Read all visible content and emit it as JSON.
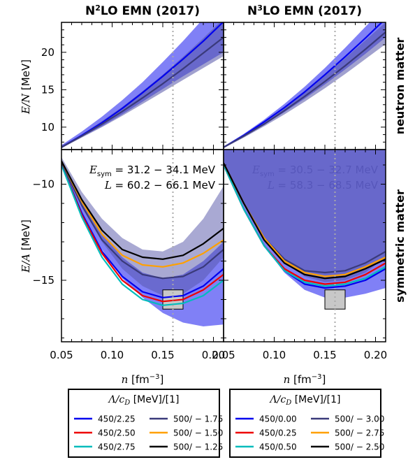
{
  "chart_data": [
    {
      "type": "line",
      "title": "N²LO EMN (2017)",
      "title_main": "N",
      "title_sup": "2",
      "title_rest": "LO EMN (2017)",
      "panel": "neutron matter",
      "xlim": [
        0.05,
        0.21
      ],
      "ylim": [
        7,
        24
      ],
      "ylabel": "E/N [MeV]",
      "yticks": [
        10,
        15,
        20
      ],
      "x": [
        0.05,
        0.07,
        0.09,
        0.11,
        0.13,
        0.15,
        0.17,
        0.19,
        0.21
      ],
      "bands": [
        {
          "name": "Λ=450",
          "color": "#6a6af5",
          "opacity": 0.85,
          "lower": [
            7.2,
            8.7,
            10.1,
            11.7,
            13.4,
            15.1,
            16.8,
            18.4,
            20.0
          ],
          "upper": [
            7.6,
            9.4,
            11.4,
            13.6,
            16.0,
            18.7,
            21.5,
            24.5,
            27.5
          ]
        },
        {
          "name": "Λ=500",
          "color": "#5353a8",
          "opacity": 0.55,
          "lower": [
            7.2,
            8.6,
            10.0,
            11.5,
            13.1,
            14.7,
            16.3,
            17.9,
            19.5
          ],
          "upper": [
            7.5,
            9.0,
            10.8,
            12.7,
            14.8,
            17.0,
            19.4,
            21.9,
            24.5
          ]
        }
      ],
      "lines": [
        {
          "color": "#0000ee",
          "values": [
            7.3,
            8.9,
            10.6,
            12.5,
            14.6,
            16.8,
            19.1,
            21.5,
            24.1
          ]
        },
        {
          "color": "#3a3a7a",
          "values": [
            7.3,
            8.8,
            10.4,
            12.1,
            13.9,
            15.8,
            17.8,
            19.9,
            22.0
          ]
        }
      ]
    },
    {
      "type": "line",
      "title": "N³LO EMN (2017)",
      "title_main": "N",
      "title_sup": "3",
      "title_rest": "LO EMN (2017)",
      "panel": "neutron matter",
      "xlim": [
        0.05,
        0.21
      ],
      "ylim": [
        7,
        24
      ],
      "x": [
        0.05,
        0.07,
        0.09,
        0.11,
        0.13,
        0.15,
        0.17,
        0.19,
        0.21
      ],
      "bands": [
        {
          "name": "Λ=450",
          "color": "#6a6af5",
          "opacity": 0.85,
          "lower": [
            7.2,
            8.7,
            10.3,
            12.0,
            13.8,
            15.7,
            17.7,
            19.8,
            22.0
          ],
          "upper": [
            7.4,
            9.1,
            11.0,
            13.1,
            15.4,
            17.9,
            20.6,
            23.4,
            26.2
          ]
        },
        {
          "name": "Λ=500",
          "color": "#5353a8",
          "opacity": 0.55,
          "lower": [
            7.2,
            8.6,
            10.1,
            11.7,
            13.4,
            15.2,
            17.1,
            19.1,
            21.1
          ],
          "upper": [
            7.4,
            8.9,
            10.7,
            12.6,
            14.7,
            16.9,
            19.2,
            21.6,
            24.0
          ]
        }
      ],
      "lines": [
        {
          "color": "#0000ee",
          "values": [
            7.3,
            8.9,
            10.7,
            12.6,
            14.7,
            17.0,
            19.4,
            21.9,
            24.5
          ]
        },
        {
          "color": "#3a3a7a",
          "values": [
            7.3,
            8.8,
            10.4,
            12.2,
            14.1,
            16.1,
            18.2,
            20.4,
            22.7
          ]
        }
      ]
    },
    {
      "type": "line",
      "panel": "symmetric matter",
      "xlim": [
        0.05,
        0.21
      ],
      "ylim": [
        -18.2,
        -8.2
      ],
      "ylabel": "E/A [MeV]",
      "yticks": [
        -10,
        -15
      ],
      "xlabel": "n [fm⁻³]",
      "xticks": [
        "0.05",
        "0.10",
        "0.15",
        "0.20"
      ],
      "annotations": [
        "E_sym = 31.2 − 34.1 MeV",
        "L = 60.2 − 66.1 MeV"
      ],
      "x": [
        0.05,
        0.07,
        0.09,
        0.11,
        0.13,
        0.15,
        0.17,
        0.19,
        0.21
      ],
      "bands": [
        {
          "name": "Λ=450",
          "color": "#6a6af5",
          "opacity": 0.85,
          "lower": [
            -9.1,
            -11.5,
            -13.4,
            -14.9,
            -15.9,
            -16.7,
            -17.2,
            -17.4,
            -17.3
          ],
          "upper": [
            -8.8,
            -10.9,
            -12.6,
            -13.8,
            -14.6,
            -14.9,
            -14.7,
            -14.0,
            -13.0
          ]
        },
        {
          "name": "Λ=500",
          "color": "#5353a8",
          "opacity": 0.5,
          "lower": [
            -8.9,
            -11.1,
            -13.0,
            -14.4,
            -15.3,
            -15.8,
            -15.7,
            -15.0,
            -13.8
          ],
          "upper": [
            -8.6,
            -10.4,
            -11.8,
            -12.8,
            -13.4,
            -13.5,
            -13.0,
            -11.8,
            -10.1
          ]
        }
      ],
      "lines": [
        {
          "name": "450/2.25",
          "color": "#0000ee",
          "values": [
            -9.0,
            -11.5,
            -13.5,
            -14.8,
            -15.6,
            -15.9,
            -15.8,
            -15.3,
            -14.4
          ]
        },
        {
          "name": "450/2.50",
          "color": "#ee0000",
          "values": [
            -9.0,
            -11.6,
            -13.6,
            -15.0,
            -15.8,
            -16.1,
            -16.0,
            -15.5,
            -14.7
          ]
        },
        {
          "name": "450/2.75",
          "color": "#00bcbc",
          "values": [
            -9.0,
            -11.7,
            -13.8,
            -15.2,
            -16.0,
            -16.3,
            -16.2,
            -15.8,
            -15.0
          ]
        },
        {
          "name": "500/−1.75",
          "color": "#3a3a7a",
          "values": [
            -8.9,
            -11.1,
            -12.9,
            -14.0,
            -14.7,
            -14.9,
            -14.8,
            -14.3,
            -13.4
          ]
        },
        {
          "name": "500/−1.50",
          "color": "#ffa000",
          "values": [
            -8.8,
            -10.9,
            -12.6,
            -13.7,
            -14.2,
            -14.3,
            -14.1,
            -13.6,
            -12.9
          ]
        },
        {
          "name": "500/−1.25",
          "color": "#000000",
          "values": [
            -8.8,
            -10.8,
            -12.4,
            -13.4,
            -13.8,
            -13.9,
            -13.7,
            -13.1,
            -12.3
          ]
        }
      ],
      "saturation_box": {
        "x": [
          0.15,
          0.17
        ],
        "y": [
          -16.5,
          -15.5
        ]
      },
      "n0": 0.16
    },
    {
      "type": "line",
      "panel": "symmetric matter",
      "xlim": [
        0.05,
        0.21
      ],
      "ylim": [
        -18.2,
        -8.2
      ],
      "xlabel": "n [fm⁻³]",
      "xticks": [
        "0.05",
        "0.10",
        "0.15",
        "0.20"
      ],
      "annotations": [
        "E_sym = 30.5 − 32.7 MeV",
        "L = 58.3 − 68.5 MeV"
      ],
      "x": [
        0.05,
        0.07,
        0.09,
        0.11,
        0.13,
        0.15,
        0.17,
        0.19,
        0.21
      ],
      "bands": [
        {
          "name": "Λ=450",
          "color": "#6a6af5",
          "opacity": 0.85,
          "lower": [
            -9.0,
            -11.3,
            -13.2,
            -14.6,
            -15.5,
            -15.9,
            -15.9,
            -15.7,
            -15.4
          ]
        },
        {
          "name": "Λ=500",
          "color": "#5353a8",
          "opacity": 0.55,
          "lower": [
            -8.9,
            -11.0,
            -12.8,
            -14.1,
            -14.8,
            -15.1,
            -15.0,
            -14.6,
            -13.8
          ]
        }
      ],
      "lines": [
        {
          "name": "450/0.00",
          "color": "#0000ee",
          "values": [
            -9.0,
            -11.3,
            -13.2,
            -14.5,
            -15.2,
            -15.4,
            -15.3,
            -15.0,
            -14.4
          ]
        },
        {
          "name": "450/0.25",
          "color": "#ee0000",
          "values": [
            -9.0,
            -11.3,
            -13.2,
            -14.4,
            -15.0,
            -15.2,
            -15.1,
            -14.7,
            -14.1
          ]
        },
        {
          "name": "450/0.50",
          "color": "#00bcbc",
          "values": [
            -9.0,
            -11.3,
            -13.2,
            -14.5,
            -15.1,
            -15.3,
            -15.2,
            -14.9,
            -14.3
          ]
        },
        {
          "name": "500/−3.00",
          "color": "#3a3a7a",
          "values": [
            -8.9,
            -11.0,
            -12.8,
            -13.9,
            -14.5,
            -14.6,
            -14.5,
            -14.1,
            -13.5
          ]
        },
        {
          "name": "500/−2.75",
          "color": "#ffa000",
          "values": [
            -8.9,
            -11.0,
            -12.8,
            -14.0,
            -14.6,
            -14.8,
            -14.7,
            -14.3,
            -13.8
          ]
        },
        {
          "name": "500/−2.50",
          "color": "#000000",
          "values": [
            -8.9,
            -11.0,
            -12.9,
            -14.1,
            -14.7,
            -14.9,
            -14.8,
            -14.4,
            -13.9
          ]
        }
      ],
      "saturation_box": {
        "x": [
          0.15,
          0.17
        ],
        "y": [
          -16.5,
          -15.5
        ]
      },
      "n0": 0.16
    }
  ],
  "side_labels": {
    "top": "neutron matter",
    "bottom": "symmetric matter"
  },
  "legends": [
    {
      "title": "Λ/c_D [MeV]/[1]",
      "col1": [
        {
          "label": "450/2.25",
          "color": "#0000ee"
        },
        {
          "label": "450/2.50",
          "color": "#ee0000"
        },
        {
          "label": "450/2.75",
          "color": "#00bcbc"
        }
      ],
      "col2": [
        {
          "label": "500/ − 1.75",
          "color": "#3a3a7a"
        },
        {
          "label": "500/ − 1.50",
          "color": "#ffa000"
        },
        {
          "label": "500/ − 1.25",
          "color": "#000000"
        }
      ]
    },
    {
      "title": "Λ/c_D [MeV]/[1]",
      "col1": [
        {
          "label": "450/0.00",
          "color": "#0000ee"
        },
        {
          "label": "450/0.25",
          "color": "#ee0000"
        },
        {
          "label": "450/0.50",
          "color": "#00bcbc"
        }
      ],
      "col2": [
        {
          "label": "500/ − 3.00",
          "color": "#3a3a7a"
        },
        {
          "label": "500/ − 2.75",
          "color": "#ffa000"
        },
        {
          "label": "500/ − 2.50",
          "color": "#000000"
        }
      ]
    }
  ]
}
